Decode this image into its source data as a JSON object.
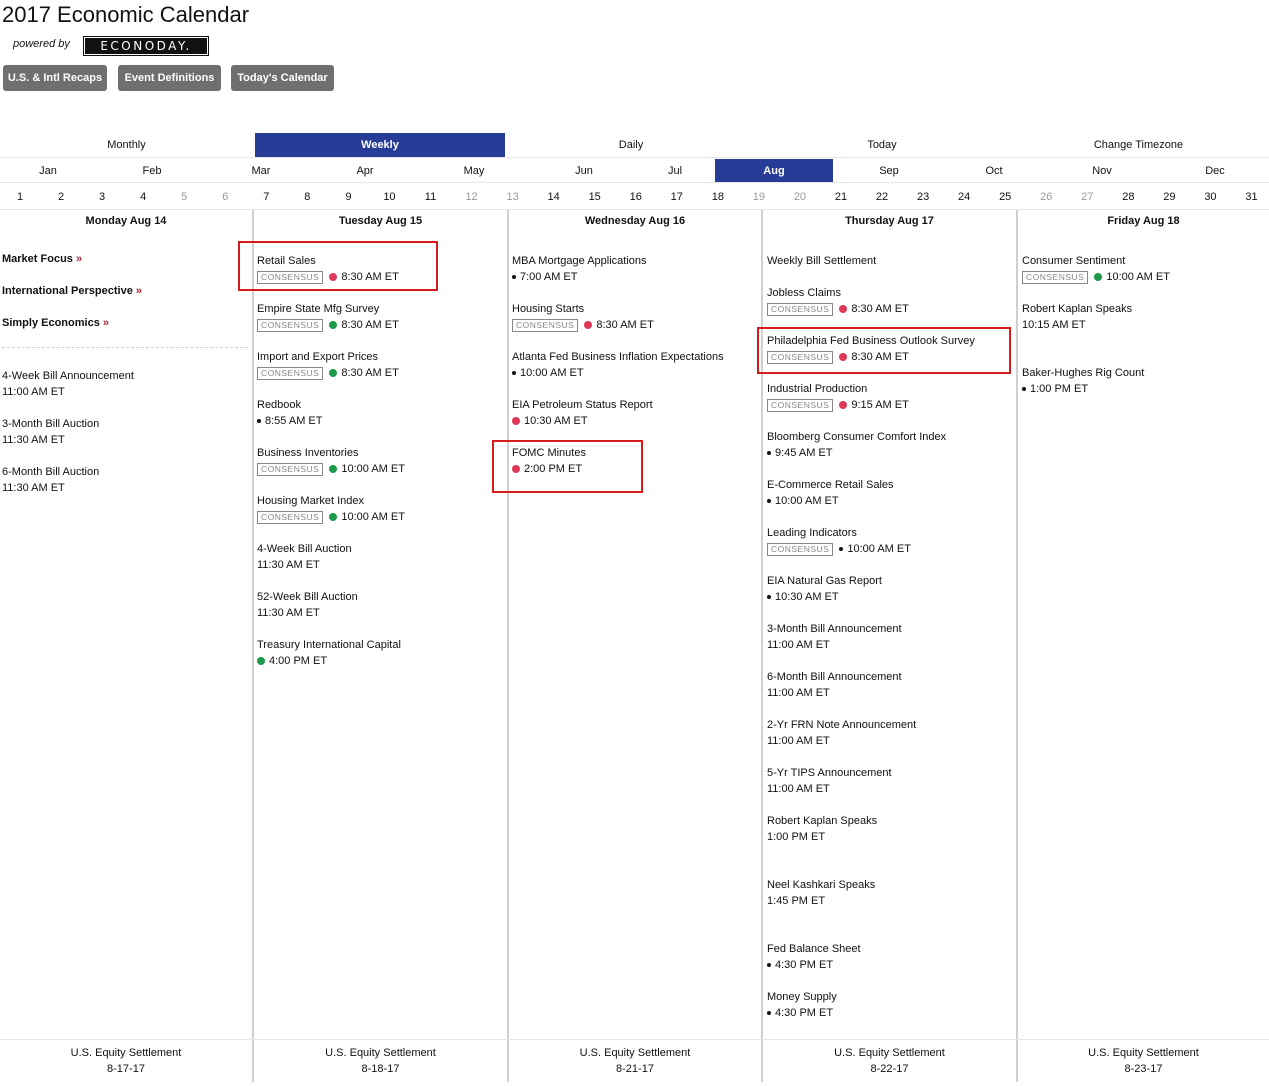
{
  "header": {
    "title": "2017 Economic Calendar",
    "powered_by": "powered by",
    "logo_text": "ECONODAY."
  },
  "buttons": {
    "recaps": "U.S. & Intl Recaps",
    "definitions": "Event Definitions",
    "today": "Today's Calendar"
  },
  "views": [
    "Monthly",
    "Weekly",
    "Daily",
    "Today",
    "Change Timezone"
  ],
  "active_view": "Weekly",
  "months": [
    "Jan",
    "Feb",
    "Mar",
    "Apr",
    "May",
    "Jun",
    "Jul",
    "Aug",
    "Sep",
    "Oct",
    "Nov",
    "Dec"
  ],
  "active_month": "Aug",
  "days": [
    "1",
    "2",
    "3",
    "4",
    "5",
    "6",
    "7",
    "8",
    "9",
    "10",
    "11",
    "12",
    "13",
    "14",
    "15",
    "16",
    "17",
    "18",
    "19",
    "20",
    "21",
    "22",
    "23",
    "24",
    "25",
    "26",
    "27",
    "28",
    "29",
    "30",
    "31"
  ],
  "weekend_days": [
    "5",
    "6",
    "12",
    "13",
    "19",
    "20",
    "26",
    "27"
  ],
  "colors": {
    "accent": "#273c96",
    "dot_red": "#e0385a",
    "dot_green": "#1e9a4a",
    "highlight_box": "#d41c1c"
  },
  "consensus_label": "CONSENSUS",
  "columns": [
    {
      "heading": "Monday Aug 14",
      "links": [
        {
          "label": "Market Focus",
          "arrow": "»"
        },
        {
          "label": "International Perspective",
          "arrow": "»"
        },
        {
          "label": "Simply Economics",
          "arrow": "»"
        }
      ],
      "events": [
        {
          "name": "4-Week Bill Announcement",
          "time": "11:00 AM ET"
        },
        {
          "name": "3-Month Bill Auction",
          "time": "11:30 AM ET"
        },
        {
          "name": "6-Month Bill Auction",
          "time": "11:30 AM ET"
        }
      ],
      "footer": {
        "name": "U.S. Equity Settlement",
        "date": "8-17-17"
      }
    },
    {
      "heading": "Tuesday Aug 15",
      "events": [
        {
          "name": "Retail Sales",
          "time": "8:30 AM ET",
          "consensus": true,
          "dot": "red"
        },
        {
          "name": "Empire State Mfg Survey",
          "time": "8:30 AM ET",
          "consensus": true,
          "dot": "green"
        },
        {
          "name": "Import and Export Prices",
          "time": "8:30 AM ET",
          "consensus": true,
          "dot": "green"
        },
        {
          "name": "Redbook",
          "time": "8:55 AM ET",
          "dot": "black"
        },
        {
          "name": "Business Inventories",
          "time": "10:00 AM ET",
          "consensus": true,
          "dot": "green"
        },
        {
          "name": "Housing Market Index",
          "time": "10:00 AM ET",
          "consensus": true,
          "dot": "green"
        },
        {
          "name": "4-Week Bill Auction",
          "time": "11:30 AM ET"
        },
        {
          "name": "52-Week Bill Auction",
          "time": "11:30 AM ET"
        },
        {
          "name": "Treasury International Capital",
          "time": "4:00 PM ET",
          "dot": "green"
        }
      ],
      "footer": {
        "name": "U.S. Equity Settlement",
        "date": "8-18-17"
      }
    },
    {
      "heading": "Wednesday Aug 16",
      "events": [
        {
          "name": "MBA Mortgage Applications",
          "time": "7:00 AM ET",
          "dot": "black"
        },
        {
          "name": "Housing Starts",
          "time": "8:30 AM ET",
          "consensus": true,
          "dot": "red"
        },
        {
          "name": "Atlanta Fed Business Inflation Expectations",
          "time": "10:00 AM ET",
          "dot": "black"
        },
        {
          "name": "EIA Petroleum Status Report",
          "time": "10:30 AM ET",
          "dot": "red"
        },
        {
          "name": "FOMC Minutes",
          "time": "2:00 PM ET",
          "dot": "red"
        }
      ],
      "footer": {
        "name": "U.S. Equity Settlement",
        "date": "8-21-17"
      }
    },
    {
      "heading": "Thursday Aug 17",
      "events": [
        {
          "name": "Weekly Bill Settlement",
          "time": ""
        },
        {
          "name": "Jobless Claims",
          "time": "8:30 AM ET",
          "consensus": true,
          "dot": "red"
        },
        {
          "name": "Philadelphia Fed Business Outlook Survey",
          "time": "8:30 AM ET",
          "consensus": true,
          "dot": "red"
        },
        {
          "name": "Industrial Production",
          "time": "9:15 AM ET",
          "consensus": true,
          "dot": "red"
        },
        {
          "name": "Bloomberg Consumer Comfort Index",
          "time": "9:45 AM ET",
          "dot": "black"
        },
        {
          "name": "E-Commerce Retail Sales",
          "time": "10:00 AM ET",
          "dot": "black"
        },
        {
          "name": "Leading Indicators",
          "time": "10:00 AM ET",
          "consensus": true,
          "dot": "black"
        },
        {
          "name": "EIA Natural Gas Report",
          "time": "10:30 AM ET",
          "dot": "black"
        },
        {
          "name": "3-Month Bill Announcement",
          "time": "11:00 AM ET"
        },
        {
          "name": "6-Month Bill Announcement",
          "time": "11:00 AM ET"
        },
        {
          "name": "2-Yr FRN Note Announcement",
          "time": "11:00 AM ET"
        },
        {
          "name": "5-Yr TIPS Announcement",
          "time": "11:00 AM ET"
        },
        {
          "name": "Robert Kaplan Speaks",
          "time": "1:00 PM ET"
        },
        {
          "name": "Neel Kashkari Speaks",
          "time": "1:45 PM ET"
        },
        {
          "name": "Fed Balance Sheet",
          "time": "4:30 PM ET",
          "dot": "black"
        },
        {
          "name": "Money Supply",
          "time": "4:30 PM ET",
          "dot": "black"
        }
      ],
      "footer": {
        "name": "U.S. Equity Settlement",
        "date": "8-22-17"
      }
    },
    {
      "heading": "Friday Aug 18",
      "events": [
        {
          "name": "Consumer Sentiment",
          "time": "10:00 AM ET",
          "consensus": true,
          "dot": "green"
        },
        {
          "name": "Robert Kaplan Speaks",
          "time": "10:15 AM ET"
        },
        {
          "name": "Baker-Hughes Rig Count",
          "time": "1:00 PM ET",
          "dot": "black"
        }
      ],
      "footer": {
        "name": "U.S. Equity Settlement",
        "date": "8-23-17"
      }
    }
  ]
}
